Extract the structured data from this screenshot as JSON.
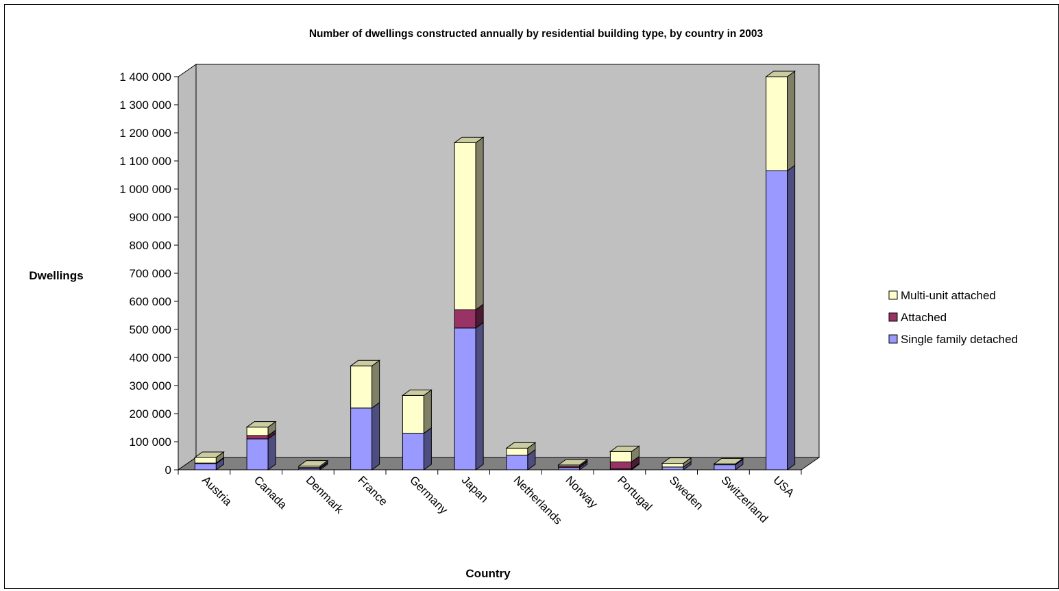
{
  "chart_data": {
    "type": "bar",
    "stacked": true,
    "title": "Number of dwellings constructed annually by residential building type, by country in 2003",
    "xlabel": "Country",
    "ylabel": "Dwellings",
    "ylim": [
      0,
      1400000
    ],
    "y_ticks": [
      0,
      100000,
      200000,
      300000,
      400000,
      500000,
      600000,
      700000,
      800000,
      900000,
      1000000,
      1100000,
      1200000,
      1300000,
      1400000
    ],
    "y_tick_labels": [
      "0",
      "100 000",
      "200 000",
      "300 000",
      "400 000",
      "500 000",
      "600 000",
      "700 000",
      "800 000",
      "900 000",
      "1 000 000",
      "1 100 000",
      "1 200 000",
      "1 300 000",
      "1 400 000"
    ],
    "categories": [
      "Austria",
      "Canada",
      "Denmark",
      "France",
      "Germany",
      "Japan",
      "Netherlands",
      "Norway",
      "Portugal",
      "Sweden",
      "Switzerland",
      "USA"
    ],
    "series": [
      {
        "name": "Single family detached",
        "color": "#9999ff",
        "values": [
          22000,
          110000,
          5000,
          220000,
          130000,
          505000,
          52000,
          8000,
          3000,
          10000,
          18000,
          1065000
        ]
      },
      {
        "name": "Attached",
        "color": "#993366",
        "values": [
          2000,
          12000,
          3000,
          0,
          0,
          65000,
          0,
          5000,
          25000,
          0,
          0,
          0
        ]
      },
      {
        "name": "Multi-unit attached",
        "color": "#ffffcc",
        "values": [
          20000,
          30000,
          5000,
          150000,
          135000,
          595000,
          25000,
          4000,
          37000,
          13000,
          3000,
          335000
        ]
      }
    ],
    "legend": {
      "position": "right",
      "order": [
        "Multi-unit attached",
        "Attached",
        "Single family detached"
      ]
    },
    "grid": false,
    "style": {
      "wall_color": "#c0c0c0",
      "floor_color": "#808080"
    }
  }
}
